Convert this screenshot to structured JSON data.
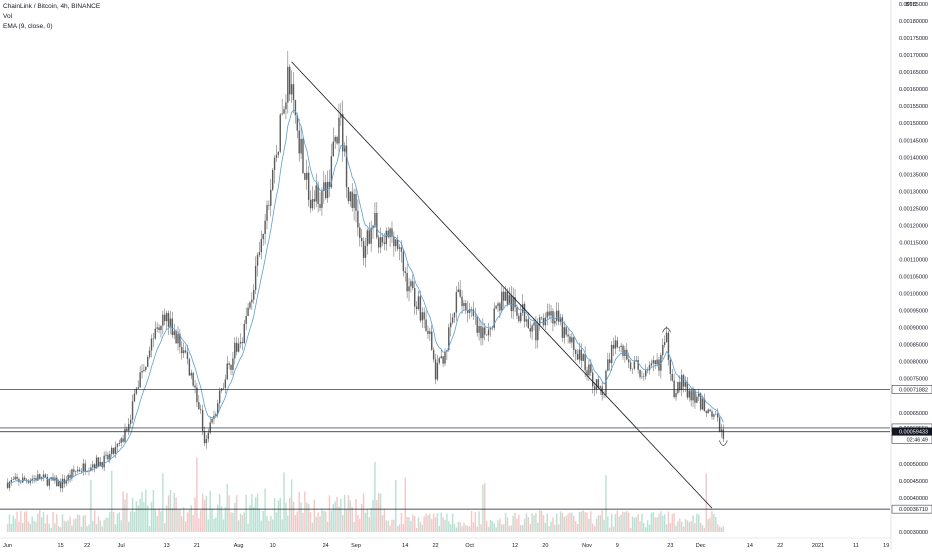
{
  "legend": {
    "title": "ChainLink / Bitcoin, 4h, BINANCE",
    "vol": "Vol",
    "ema": "EMA (9, close, 0)"
  },
  "colors": {
    "candle_up": "#5b5b5b",
    "candle_down": "#5b5b5b",
    "ema": "#5a9fd4",
    "vol_up": "#a8d8c8",
    "vol_down": "#f3b8b8",
    "line": "#131722",
    "tag_bg": "#ffffff",
    "tag_border": "#131722"
  },
  "chart_data": {
    "type": "candlestick",
    "currency": "BTC",
    "ylim": [
      0.0003,
      0.00185
    ],
    "y_ticks": [
      "0.00185000",
      "0.00180000",
      "0.00175000",
      "0.00170000",
      "0.00165000",
      "0.00160000",
      "0.00155000",
      "0.00150000",
      "0.00145000",
      "0.00140000",
      "0.00135000",
      "0.00130000",
      "0.00125000",
      "0.00120000",
      "0.00115000",
      "0.00110000",
      "0.00105000",
      "0.00100000",
      "0.00095000",
      "0.00090000",
      "0.00085000",
      "0.00080000",
      "0.00075000",
      "0.00065000",
      "0.00050000",
      "0.00045000",
      "0.00040000",
      "0.00030000"
    ],
    "x_ticks": [
      "Jun",
      "15",
      "22",
      "Jul",
      "13",
      "21",
      "Aug",
      "10",
      "24",
      "Sep",
      "14",
      "22",
      "Oct",
      "12",
      "20",
      "Nov",
      "9",
      "23",
      "Dec",
      "14",
      "22",
      "2021",
      "11",
      "19"
    ],
    "x_tick_days": [
      0,
      14,
      21,
      30,
      42,
      50,
      61,
      70,
      84,
      92,
      105,
      113,
      122,
      134,
      142,
      153,
      161,
      175,
      183,
      196,
      204,
      214,
      224,
      232
    ],
    "last_day": 189,
    "key_points": [
      [
        0,
        0.000445
      ],
      [
        8,
        0.00046
      ],
      [
        14,
        0.00044
      ],
      [
        18,
        0.00048
      ],
      [
        22,
        0.0005
      ],
      [
        26,
        0.00051
      ],
      [
        30,
        0.00056
      ],
      [
        32,
        0.00063
      ],
      [
        35,
        0.00076
      ],
      [
        38,
        0.00086
      ],
      [
        41,
        0.00095
      ],
      [
        44,
        0.00088
      ],
      [
        47,
        0.00082
      ],
      [
        50,
        0.0007
      ],
      [
        52,
        0.00058
      ],
      [
        55,
        0.00065
      ],
      [
        58,
        0.00078
      ],
      [
        61,
        0.00085
      ],
      [
        63,
        0.00092
      ],
      [
        66,
        0.00108
      ],
      [
        68,
        0.0012
      ],
      [
        70,
        0.00135
      ],
      [
        72,
        0.00148
      ],
      [
        74,
        0.00164
      ],
      [
        76,
        0.00152
      ],
      [
        78,
        0.0014
      ],
      [
        80,
        0.00125
      ],
      [
        82,
        0.0013
      ],
      [
        84,
        0.00128
      ],
      [
        86,
        0.00143
      ],
      [
        88,
        0.0015
      ],
      [
        90,
        0.0013
      ],
      [
        92,
        0.00125
      ],
      [
        94,
        0.00108
      ],
      [
        96,
        0.00122
      ],
      [
        99,
        0.00115
      ],
      [
        102,
        0.00118
      ],
      [
        105,
        0.00105
      ],
      [
        108,
        0.00098
      ],
      [
        111,
        0.0009
      ],
      [
        113,
        0.00076
      ],
      [
        116,
        0.00085
      ],
      [
        119,
        0.001
      ],
      [
        122,
        0.00095
      ],
      [
        125,
        0.00086
      ],
      [
        128,
        0.00093
      ],
      [
        131,
        0.001
      ],
      [
        134,
        0.00095
      ],
      [
        137,
        0.00094
      ],
      [
        140,
        0.00088
      ],
      [
        142,
        0.00096
      ],
      [
        145,
        0.00092
      ],
      [
        148,
        0.00086
      ],
      [
        151,
        0.00082
      ],
      [
        154,
        0.00076
      ],
      [
        157,
        0.0007
      ],
      [
        160,
        0.00086
      ],
      [
        163,
        0.00082
      ],
      [
        166,
        0.00078
      ],
      [
        169,
        0.00076
      ],
      [
        172,
        0.0008
      ],
      [
        174,
        0.00086
      ],
      [
        176,
        0.00072
      ],
      [
        178,
        0.00074
      ],
      [
        180,
        0.0007
      ],
      [
        183,
        0.00068
      ],
      [
        186,
        0.00065
      ],
      [
        189,
        0.00059
      ]
    ],
    "horizontal_levels": [
      {
        "value": 0.00071882,
        "label": "0.00071882"
      },
      {
        "value": 0.0006055,
        "label": "0.00060550"
      },
      {
        "value": 0.00059433,
        "label": "0.00059433",
        "dark": true
      },
      {
        "value": 0.0003671,
        "label": "0.00036710"
      }
    ],
    "countdown": {
      "value": 0.000572,
      "label": "02:46:49"
    },
    "trendline": {
      "start": [
        75,
        0.00168
      ],
      "end": [
        186,
        0.00037
      ]
    }
  }
}
